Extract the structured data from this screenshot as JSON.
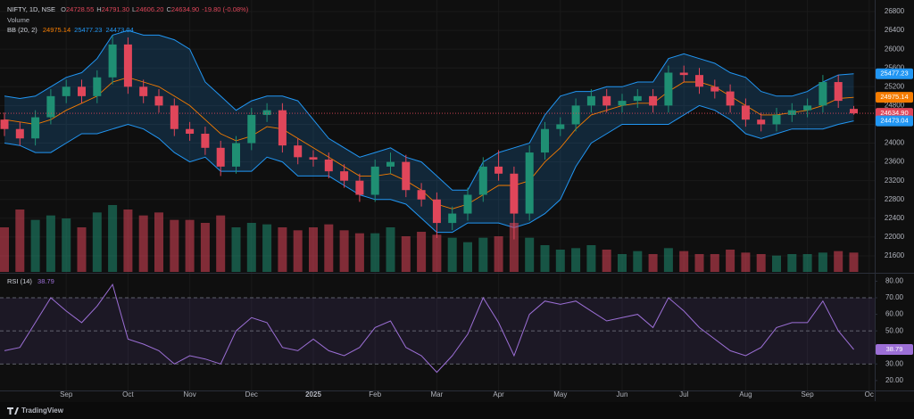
{
  "chart_data": {
    "type": "candlestick",
    "title": "NIFTY, 1D, NSE",
    "ohlc_legend": [
      {
        "key": "O",
        "value": "24728.55"
      },
      {
        "key": "H",
        "value": "24791.30"
      },
      {
        "key": "L",
        "value": "24606.20"
      },
      {
        "key": "C",
        "value": "24634.90"
      }
    ],
    "change": "-19.80 (-0.08%)",
    "categories": [
      null,
      null,
      null,
      null,
      "Sep",
      null,
      null,
      null,
      "Oct",
      null,
      null,
      null,
      "Nov",
      null,
      null,
      null,
      "Dec",
      null,
      null,
      null,
      "2025",
      null,
      null,
      null,
      "Feb",
      null,
      null,
      null,
      "Mar",
      null,
      null,
      null,
      "Apr",
      null,
      null,
      null,
      "May",
      null,
      null,
      null,
      "Jun",
      null,
      null,
      null,
      "Jul",
      null,
      null,
      null,
      "Aug",
      null,
      null,
      null,
      "Sep",
      null,
      null,
      null,
      "Oc"
    ],
    "open": [
      24500,
      24300,
      24100,
      24550,
      25000,
      25200,
      25000,
      25400,
      26100,
      25200,
      25000,
      24800,
      24300,
      24200,
      23900,
      23500,
      24000,
      24600,
      24700,
      23950,
      23700,
      23650,
      23400,
      23200,
      22900,
      23500,
      23600,
      23000,
      22800,
      22300,
      22500,
      22900,
      23500,
      23350,
      22500,
      23800,
      24300,
      24400,
      24800,
      25000,
      24800,
      24900,
      25000,
      24800,
      25500,
      25450,
      25200,
      25100,
      24800,
      24500,
      24400,
      24600,
      24700,
      24800,
      25300,
      24728.55,
      null
    ],
    "high": [
      24650,
      24450,
      24700,
      25150,
      25350,
      25350,
      25550,
      26280,
      26250,
      25350,
      25150,
      24950,
      24450,
      24350,
      24050,
      24150,
      24750,
      24850,
      24850,
      24100,
      23850,
      23800,
      23550,
      23350,
      23650,
      23800,
      23750,
      23150,
      22950,
      22650,
      23050,
      23700,
      23850,
      23500,
      23950,
      24450,
      24550,
      24950,
      25150,
      25150,
      25050,
      25150,
      25150,
      25650,
      25650,
      25600,
      25350,
      25250,
      24950,
      24650,
      24750,
      24850,
      24950,
      25450,
      25450,
      24791.3,
      null
    ],
    "low": [
      24150,
      23950,
      23950,
      24400,
      24850,
      24850,
      24850,
      25250,
      25050,
      24850,
      24650,
      24150,
      24050,
      23750,
      23300,
      23350,
      23850,
      24450,
      23800,
      23550,
      23500,
      23250,
      23050,
      22750,
      22750,
      23350,
      22850,
      22650,
      21980,
      22150,
      22350,
      22750,
      23200,
      21950,
      22350,
      23650,
      24150,
      24250,
      24650,
      24650,
      24650,
      24750,
      24650,
      24650,
      25300,
      25050,
      24950,
      24650,
      24350,
      24250,
      24250,
      24450,
      24550,
      24650,
      24750,
      24606.2,
      null
    ],
    "close": [
      24300,
      24100,
      24550,
      25000,
      25200,
      25000,
      25400,
      26100,
      25200,
      25000,
      24800,
      24300,
      24200,
      23900,
      23500,
      24000,
      24600,
      24700,
      23950,
      23700,
      23650,
      23400,
      23200,
      22900,
      23500,
      23600,
      23000,
      22800,
      22300,
      22500,
      22900,
      23500,
      23350,
      22500,
      23800,
      24300,
      24400,
      24800,
      25000,
      24800,
      24900,
      25000,
      24800,
      25500,
      25450,
      25200,
      25100,
      24800,
      24500,
      24400,
      24600,
      24700,
      24800,
      25300,
      24900,
      24634.9,
      null
    ],
    "up_color": "#1f8f73",
    "down_color": "#e0465a",
    "last_price_label": "24634.90",
    "ylim": [
      21258,
      27047
    ],
    "yticks": [
      21600,
      22000,
      22400,
      22800,
      23200,
      23600,
      24000,
      24400,
      24800,
      25200,
      25600,
      26000,
      26400,
      26800
    ],
    "grid": true,
    "bb": {
      "title": "BB (20, 2)",
      "series": [
        {
          "color": "#f57c00",
          "last_label": "24975.14",
          "values": [
            24500,
            24450,
            24400,
            24500,
            24700,
            24850,
            25000,
            25300,
            25400,
            25300,
            25200,
            25000,
            24800,
            24500,
            24200,
            24050,
            24150,
            24350,
            24300,
            24100,
            23900,
            23700,
            23500,
            23300,
            23300,
            23350,
            23200,
            23000,
            22700,
            22600,
            22700,
            22900,
            23100,
            23100,
            23200,
            23600,
            23900,
            24300,
            24600,
            24700,
            24800,
            24850,
            24850,
            25100,
            25300,
            25300,
            25200,
            25000,
            24800,
            24600,
            24600,
            24650,
            24700,
            24800,
            24950,
            24975.14,
            null
          ]
        },
        {
          "color": "#2196f3",
          "last_label": "25477.23",
          "values": [
            25000,
            24950,
            25000,
            25200,
            25400,
            25500,
            25800,
            26300,
            26400,
            26300,
            26300,
            26200,
            26000,
            25300,
            25000,
            24700,
            24900,
            25000,
            25000,
            24900,
            24500,
            24100,
            23900,
            23700,
            23800,
            23900,
            23700,
            23600,
            23300,
            23000,
            23000,
            23600,
            23800,
            23900,
            24000,
            24600,
            25000,
            25100,
            25100,
            25200,
            25200,
            25300,
            25300,
            25800,
            25900,
            25800,
            25700,
            25500,
            25400,
            25100,
            25000,
            25000,
            25100,
            25300,
            25450,
            25477.23,
            null
          ]
        },
        {
          "color": "#2196f3",
          "last_label": "24473.04",
          "values": [
            24000,
            23950,
            23800,
            23800,
            24000,
            24200,
            24200,
            24300,
            24400,
            24300,
            24100,
            23800,
            23600,
            23700,
            23400,
            23400,
            23400,
            23700,
            23600,
            23300,
            23300,
            23300,
            23100,
            22900,
            22800,
            22800,
            22700,
            22400,
            22100,
            22100,
            22300,
            22300,
            22300,
            22200,
            22300,
            22500,
            22800,
            23500,
            24000,
            24200,
            24400,
            24400,
            24400,
            24400,
            24600,
            24800,
            24700,
            24500,
            24200,
            24100,
            24200,
            24300,
            24300,
            24300,
            24400,
            24473.04,
            null
          ]
        }
      ]
    },
    "volume": {
      "title": "Volume",
      "values": [
        300,
        420,
        350,
        380,
        360,
        300,
        400,
        450,
        420,
        380,
        400,
        350,
        350,
        330,
        380,
        300,
        330,
        320,
        300,
        280,
        300,
        320,
        280,
        260,
        260,
        300,
        240,
        270,
        250,
        230,
        200,
        230,
        240,
        330,
        230,
        180,
        150,
        160,
        180,
        150,
        120,
        140,
        120,
        160,
        140,
        120,
        120,
        150,
        130,
        120,
        110,
        120,
        120,
        130,
        140,
        130,
        null
      ]
    },
    "rsi": {
      "title": "RSI (14)",
      "last_label": "38.79",
      "color": "#9c6fd6",
      "values": [
        38,
        40,
        55,
        70,
        62,
        55,
        65,
        78,
        45,
        42,
        38,
        30,
        35,
        33,
        30,
        50,
        58,
        55,
        40,
        38,
        45,
        38,
        35,
        40,
        52,
        56,
        40,
        35,
        25,
        35,
        48,
        70,
        55,
        35,
        60,
        68,
        66,
        68,
        62,
        56,
        58,
        60,
        52,
        70,
        62,
        52,
        45,
        38,
        35,
        40,
        52,
        55,
        55,
        68,
        50,
        38.79,
        null
      ],
      "ylim": [
        14,
        84
      ],
      "yticks": [
        {
          "value": 20,
          "label": "20.00"
        },
        {
          "value": 30,
          "label": "30.00"
        },
        {
          "value": 40,
          "label": "40.00"
        },
        {
          "value": 50,
          "label": "50.00"
        },
        {
          "value": 60,
          "label": "60.00"
        },
        {
          "value": 70,
          "label": "70.00"
        },
        {
          "value": 80,
          "label": "80.00"
        }
      ],
      "band": [
        30,
        70
      ],
      "midline": 50
    },
    "watermark": "TradingView"
  }
}
